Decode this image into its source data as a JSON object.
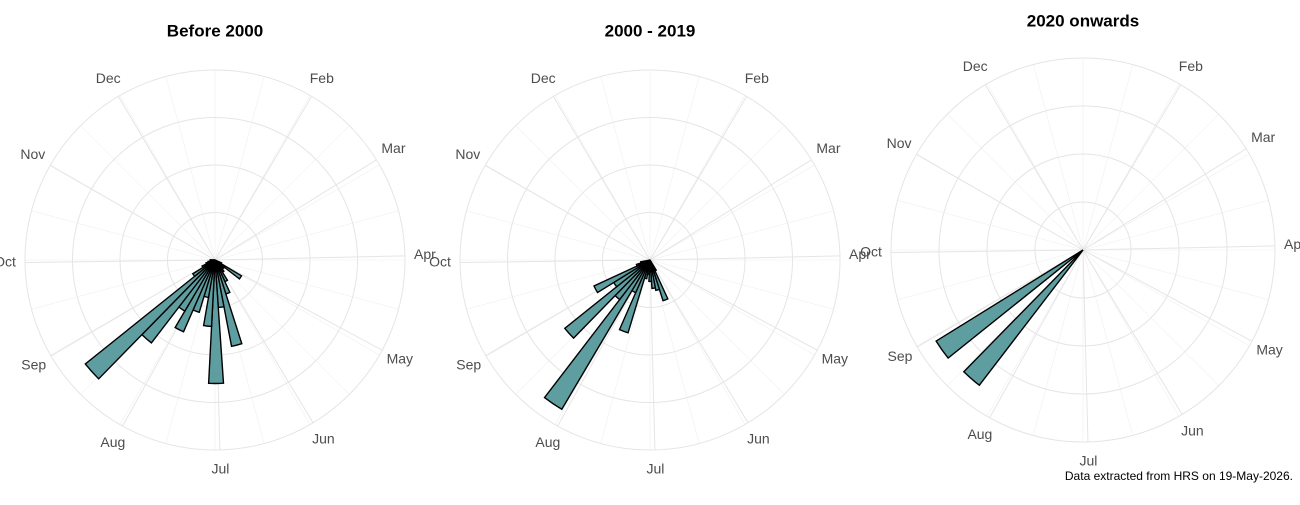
{
  "chart_data": [
    {
      "type": "polar_bar",
      "title": "Before 2000",
      "color": "#5f9ea0",
      "x": [
        120,
        127,
        134,
        141,
        148,
        155,
        162,
        169,
        176,
        183,
        190,
        197,
        204,
        211,
        218,
        225,
        232,
        239,
        246,
        253,
        260,
        267,
        274
      ],
      "values": [
        0.3,
        1.3,
        0.5,
        0.4,
        0.6,
        1.0,
        1.5,
        3.7,
        2.0,
        5.2,
        2.8,
        1.6,
        2.3,
        3.3,
        2.5,
        4.4,
        7.0,
        1.1,
        0.6,
        0.4,
        0.3,
        0.2,
        0.2
      ],
      "xlim": [
        1,
        366
      ],
      "xticks": [
        {
          "value": 32,
          "label": "Feb"
        },
        {
          "value": 60,
          "label": "Mar"
        },
        {
          "value": 91,
          "label": "Apr"
        },
        {
          "value": 121,
          "label": "May"
        },
        {
          "value": 152,
          "label": "Jun"
        },
        {
          "value": 182,
          "label": "Jul"
        },
        {
          "value": 213,
          "label": "Aug"
        },
        {
          "value": 244,
          "label": "Sep"
        },
        {
          "value": 274,
          "label": "Oct"
        },
        {
          "value": 305,
          "label": "Nov"
        },
        {
          "value": 335,
          "label": "Dec"
        }
      ],
      "ylim": [
        0,
        8
      ],
      "yticks": [
        2,
        4,
        6,
        8
      ],
      "grid": true
    },
    {
      "type": "polar_bar",
      "title": "2000 - 2019",
      "color": "#5f9ea0",
      "x": [
        155,
        162,
        169,
        176,
        183,
        190,
        197,
        204,
        211,
        218,
        225,
        232,
        239,
        246,
        253,
        260
      ],
      "values": [
        0.5,
        1.8,
        1.3,
        1.2,
        0.9,
        0.6,
        0.8,
        3.2,
        1.5,
        7.3,
        2.1,
        4.6,
        1.8,
        2.6,
        0.6,
        0.4
      ],
      "xlim": [
        1,
        366
      ],
      "xticks": [
        {
          "value": 32,
          "label": "Feb"
        },
        {
          "value": 60,
          "label": "Mar"
        },
        {
          "value": 91,
          "label": "Apr"
        },
        {
          "value": 121,
          "label": "May"
        },
        {
          "value": 152,
          "label": "Jun"
        },
        {
          "value": 182,
          "label": "Jul"
        },
        {
          "value": 213,
          "label": "Aug"
        },
        {
          "value": 244,
          "label": "Sep"
        },
        {
          "value": 274,
          "label": "Oct"
        },
        {
          "value": 305,
          "label": "Nov"
        },
        {
          "value": 335,
          "label": "Dec"
        }
      ],
      "ylim": [
        0,
        8
      ],
      "yticks": [
        2,
        4,
        6,
        8
      ],
      "grid": true
    },
    {
      "type": "polar_bar",
      "title": "2020 onwards",
      "color": "#5f9ea0",
      "x": [
        225,
        239
      ],
      "values": [
        7.1,
        7.2
      ],
      "xlim": [
        1,
        366
      ],
      "xticks": [
        {
          "value": 32,
          "label": "Feb"
        },
        {
          "value": 60,
          "label": "Mar"
        },
        {
          "value": 91,
          "label": "Apr"
        },
        {
          "value": 121,
          "label": "May"
        },
        {
          "value": 152,
          "label": "Jun"
        },
        {
          "value": 182,
          "label": "Jul"
        },
        {
          "value": 213,
          "label": "Aug"
        },
        {
          "value": 244,
          "label": "Sep"
        },
        {
          "value": 274,
          "label": "Oct"
        },
        {
          "value": 305,
          "label": "Nov"
        },
        {
          "value": 335,
          "label": "Dec"
        }
      ],
      "ylim": [
        0,
        8
      ],
      "yticks": [
        2,
        4,
        6,
        8
      ],
      "grid": true
    }
  ],
  "caption": "Data extracted from HRS on 19-May-2026."
}
